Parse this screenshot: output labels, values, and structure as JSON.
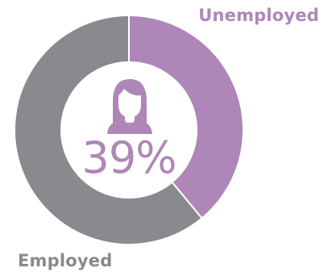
{
  "colors": {
    "unemployed": "#ae86b8",
    "employed": "#898a8e",
    "background": "#ffffff"
  },
  "center": {
    "icon": "woman-icon",
    "percent_label": "39%"
  },
  "chart_data": {
    "type": "pie",
    "donut": true,
    "title": "",
    "legend": "inline labels",
    "categories": [
      "Unemployed",
      "Employed"
    ],
    "values": [
      39,
      61
    ],
    "unit": "%",
    "slices": [
      {
        "label": "Unemployed",
        "value": 39,
        "color": "#ae86b8"
      },
      {
        "label": "Employed",
        "value": 61,
        "color": "#898a8e"
      }
    ]
  }
}
